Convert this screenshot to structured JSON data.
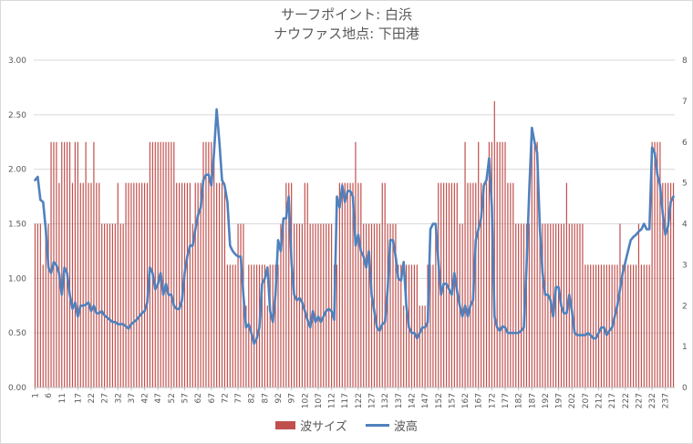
{
  "chart_data": {
    "type": "bar+line",
    "title": [
      "サーフポイント: 白浜",
      "ナウファス地点: 下田港"
    ],
    "x_tick_labels": [
      "1",
      "6",
      "11",
      "17",
      "22",
      "27",
      "32",
      "37",
      "42",
      "47",
      "52",
      "57",
      "62",
      "67",
      "72",
      "77",
      "82",
      "87",
      "92",
      "97",
      "102",
      "107",
      "112",
      "117",
      "122",
      "127",
      "132",
      "137",
      "142",
      "147",
      "152",
      "157",
      "162",
      "167",
      "172",
      "177",
      "182",
      "187",
      "192",
      "197",
      "202",
      "207",
      "212",
      "217",
      "222",
      "227",
      "232",
      "237"
    ],
    "x_range": [
      1,
      240
    ],
    "y_left": {
      "range": [
        0,
        3
      ],
      "ticks": [
        "0.00",
        "0.50",
        "1.00",
        "1.50",
        "2.00",
        "2.50",
        "3.00"
      ]
    },
    "y_right": {
      "range": [
        0,
        8
      ],
      "ticks": [
        "0",
        "1",
        "2",
        "3",
        "4",
        "5",
        "6",
        "7",
        "8"
      ]
    },
    "grid": "horizontal",
    "legend_position": "bottom",
    "series": [
      {
        "name": "波サイズ",
        "type": "bar",
        "axis": "right",
        "color": "#c0504d",
        "step_points": [
          [
            1,
            4
          ],
          [
            4,
            3
          ],
          [
            5,
            4
          ],
          [
            7,
            6
          ],
          [
            10,
            5
          ],
          [
            11,
            6
          ],
          [
            15,
            5
          ],
          [
            16,
            6
          ],
          [
            18,
            5
          ],
          [
            20,
            6
          ],
          [
            21,
            5
          ],
          [
            23,
            6
          ],
          [
            24,
            5
          ],
          [
            26,
            4
          ],
          [
            32,
            5
          ],
          [
            33,
            4
          ],
          [
            35,
            5
          ],
          [
            44,
            6
          ],
          [
            48,
            6
          ],
          [
            54,
            5
          ],
          [
            60,
            4
          ],
          [
            61,
            5
          ],
          [
            64,
            6
          ],
          [
            69,
            5
          ],
          [
            73,
            3
          ],
          [
            74,
            3
          ],
          [
            77,
            4
          ],
          [
            80,
            2
          ],
          [
            81,
            3
          ],
          [
            88,
            2
          ],
          [
            89,
            3
          ],
          [
            93,
            4
          ],
          [
            95,
            5
          ],
          [
            98,
            4
          ],
          [
            102,
            5
          ],
          [
            104,
            4
          ],
          [
            108,
            4
          ],
          [
            113,
            3
          ],
          [
            115,
            5
          ],
          [
            118,
            5
          ],
          [
            121,
            6
          ],
          [
            122,
            5
          ],
          [
            124,
            4
          ],
          [
            131,
            5
          ],
          [
            133,
            4
          ],
          [
            137,
            3
          ],
          [
            139,
            2
          ],
          [
            140,
            3
          ],
          [
            145,
            2
          ],
          [
            148,
            3
          ],
          [
            151,
            4
          ],
          [
            152,
            5
          ],
          [
            160,
            4
          ],
          [
            162,
            6
          ],
          [
            163,
            5
          ],
          [
            167,
            6
          ],
          [
            168,
            5
          ],
          [
            171,
            6
          ],
          [
            173,
            7
          ],
          [
            174,
            6
          ],
          [
            178,
            5
          ],
          [
            181,
            4
          ],
          [
            184,
            4
          ],
          [
            187,
            6
          ],
          [
            190,
            4
          ],
          [
            200,
            5
          ],
          [
            201,
            4
          ],
          [
            207,
            3
          ],
          [
            213,
            3
          ],
          [
            220,
            4
          ],
          [
            221,
            3
          ],
          [
            227,
            4
          ],
          [
            228,
            3
          ],
          [
            232,
            6
          ],
          [
            236,
            5
          ],
          [
            240,
            5
          ]
        ]
      },
      {
        "name": "波高",
        "type": "line",
        "axis": "left",
        "color": "#4f81bd",
        "points": [
          [
            1,
            1.9
          ],
          [
            2,
            1.93
          ],
          [
            3,
            1.72
          ],
          [
            4,
            1.7
          ],
          [
            5,
            1.45
          ],
          [
            6,
            1.1
          ],
          [
            7,
            1.05
          ],
          [
            8,
            1.15
          ],
          [
            9,
            1.12
          ],
          [
            10,
            1.05
          ],
          [
            11,
            0.85
          ],
          [
            12,
            1.1
          ],
          [
            13,
            1.05
          ],
          [
            14,
            0.85
          ],
          [
            15,
            0.72
          ],
          [
            16,
            0.78
          ],
          [
            17,
            0.65
          ],
          [
            18,
            0.75
          ],
          [
            19,
            0.75
          ],
          [
            20,
            0.76
          ],
          [
            21,
            0.78
          ],
          [
            22,
            0.7
          ],
          [
            23,
            0.75
          ],
          [
            24,
            0.68
          ],
          [
            25,
            0.68
          ],
          [
            26,
            0.7
          ],
          [
            27,
            0.66
          ],
          [
            28,
            0.64
          ],
          [
            29,
            0.62
          ],
          [
            30,
            0.6
          ],
          [
            31,
            0.6
          ],
          [
            32,
            0.58
          ],
          [
            33,
            0.58
          ],
          [
            34,
            0.58
          ],
          [
            35,
            0.56
          ],
          [
            36,
            0.54
          ],
          [
            37,
            0.58
          ],
          [
            38,
            0.6
          ],
          [
            39,
            0.62
          ],
          [
            40,
            0.65
          ],
          [
            41,
            0.68
          ],
          [
            42,
            0.7
          ],
          [
            43,
            0.78
          ],
          [
            44,
            1.1
          ],
          [
            45,
            1.05
          ],
          [
            46,
            0.9
          ],
          [
            47,
            0.95
          ],
          [
            48,
            1.05
          ],
          [
            49,
            0.85
          ],
          [
            50,
            0.95
          ],
          [
            51,
            0.85
          ],
          [
            52,
            0.85
          ],
          [
            53,
            0.75
          ],
          [
            54,
            0.72
          ],
          [
            55,
            0.72
          ],
          [
            56,
            0.8
          ],
          [
            57,
            1.05
          ],
          [
            58,
            1.2
          ],
          [
            59,
            1.3
          ],
          [
            60,
            1.3
          ],
          [
            61,
            1.45
          ],
          [
            62,
            1.58
          ],
          [
            63,
            1.65
          ],
          [
            64,
            1.9
          ],
          [
            65,
            1.95
          ],
          [
            66,
            1.95
          ],
          [
            67,
            1.85
          ],
          [
            68,
            2.15
          ],
          [
            69,
            2.55
          ],
          [
            70,
            2.25
          ],
          [
            71,
            1.9
          ],
          [
            72,
            1.85
          ],
          [
            73,
            1.7
          ],
          [
            74,
            1.3
          ],
          [
            75,
            1.25
          ],
          [
            76,
            1.22
          ],
          [
            77,
            1.2
          ],
          [
            78,
            1.2
          ],
          [
            79,
            0.85
          ],
          [
            80,
            0.55
          ],
          [
            81,
            0.58
          ],
          [
            82,
            0.5
          ],
          [
            83,
            0.4
          ],
          [
            84,
            0.45
          ],
          [
            85,
            0.55
          ],
          [
            86,
            0.95
          ],
          [
            87,
            1.0
          ],
          [
            88,
            1.1
          ],
          [
            89,
            0.7
          ],
          [
            90,
            0.6
          ],
          [
            91,
            0.85
          ],
          [
            92,
            1.35
          ],
          [
            93,
            1.25
          ],
          [
            94,
            1.55
          ],
          [
            95,
            1.55
          ],
          [
            96,
            1.75
          ],
          [
            97,
            1.15
          ],
          [
            98,
            0.85
          ],
          [
            99,
            0.8
          ],
          [
            100,
            0.82
          ],
          [
            101,
            0.78
          ],
          [
            102,
            0.7
          ],
          [
            103,
            0.62
          ],
          [
            104,
            0.55
          ],
          [
            105,
            0.7
          ],
          [
            106,
            0.6
          ],
          [
            107,
            0.65
          ],
          [
            108,
            0.6
          ],
          [
            109,
            0.65
          ],
          [
            110,
            0.7
          ],
          [
            111,
            0.72
          ],
          [
            112,
            0.7
          ],
          [
            113,
            0.62
          ],
          [
            114,
            1.75
          ],
          [
            115,
            1.65
          ],
          [
            116,
            1.85
          ],
          [
            117,
            1.7
          ],
          [
            118,
            1.8
          ],
          [
            119,
            1.8
          ],
          [
            120,
            1.75
          ],
          [
            121,
            1.3
          ],
          [
            122,
            1.4
          ],
          [
            123,
            1.25
          ],
          [
            124,
            1.2
          ],
          [
            125,
            1.1
          ],
          [
            126,
            1.25
          ],
          [
            127,
            0.85
          ],
          [
            128,
            0.7
          ],
          [
            129,
            0.55
          ],
          [
            130,
            0.52
          ],
          [
            131,
            0.58
          ],
          [
            132,
            0.6
          ],
          [
            133,
            0.9
          ],
          [
            134,
            1.35
          ],
          [
            135,
            1.35
          ],
          [
            136,
            1.2
          ],
          [
            137,
            1.0
          ],
          [
            138,
            0.98
          ],
          [
            139,
            1.15
          ],
          [
            140,
            0.75
          ],
          [
            141,
            0.55
          ],
          [
            142,
            0.5
          ],
          [
            143,
            0.5
          ],
          [
            144,
            0.45
          ],
          [
            145,
            0.5
          ],
          [
            146,
            0.55
          ],
          [
            147,
            0.55
          ],
          [
            148,
            0.6
          ],
          [
            149,
            1.45
          ],
          [
            150,
            1.5
          ],
          [
            151,
            1.5
          ],
          [
            152,
            1.15
          ],
          [
            153,
            0.85
          ],
          [
            154,
            0.95
          ],
          [
            155,
            0.95
          ],
          [
            156,
            0.9
          ],
          [
            157,
            0.85
          ],
          [
            158,
            1.05
          ],
          [
            159,
            0.88
          ],
          [
            160,
            0.75
          ],
          [
            161,
            0.65
          ],
          [
            162,
            0.75
          ],
          [
            163,
            0.65
          ],
          [
            164,
            0.75
          ],
          [
            165,
            0.8
          ],
          [
            166,
            1.35
          ],
          [
            167,
            1.45
          ],
          [
            168,
            1.55
          ],
          [
            169,
            1.85
          ],
          [
            170,
            1.9
          ],
          [
            171,
            2.1
          ],
          [
            172,
            1.65
          ],
          [
            173,
            0.65
          ],
          [
            174,
            0.55
          ],
          [
            175,
            0.52
          ],
          [
            176,
            0.56
          ],
          [
            177,
            0.55
          ],
          [
            178,
            0.5
          ],
          [
            179,
            0.5
          ],
          [
            180,
            0.5
          ],
          [
            181,
            0.5
          ],
          [
            182,
            0.5
          ],
          [
            183,
            0.52
          ],
          [
            184,
            0.55
          ],
          [
            185,
            1.1
          ],
          [
            186,
            1.8
          ],
          [
            187,
            2.38
          ],
          [
            188,
            2.25
          ],
          [
            189,
            2.15
          ],
          [
            190,
            1.45
          ],
          [
            191,
            1.05
          ],
          [
            192,
            0.85
          ],
          [
            193,
            0.85
          ],
          [
            194,
            0.8
          ],
          [
            195,
            0.65
          ],
          [
            196,
            0.92
          ],
          [
            197,
            0.92
          ],
          [
            198,
            0.75
          ],
          [
            199,
            0.68
          ],
          [
            200,
            0.68
          ],
          [
            201,
            0.85
          ],
          [
            202,
            0.7
          ],
          [
            203,
            0.5
          ],
          [
            204,
            0.48
          ],
          [
            205,
            0.48
          ],
          [
            206,
            0.48
          ],
          [
            207,
            0.48
          ],
          [
            208,
            0.5
          ],
          [
            209,
            0.48
          ],
          [
            210,
            0.45
          ],
          [
            211,
            0.45
          ],
          [
            212,
            0.5
          ],
          [
            213,
            0.55
          ],
          [
            214,
            0.55
          ],
          [
            215,
            0.48
          ],
          [
            216,
            0.52
          ],
          [
            217,
            0.55
          ],
          [
            218,
            0.65
          ],
          [
            219,
            0.75
          ],
          [
            220,
            0.9
          ],
          [
            221,
            1.05
          ],
          [
            222,
            1.15
          ],
          [
            223,
            1.25
          ],
          [
            224,
            1.35
          ],
          [
            225,
            1.38
          ],
          [
            226,
            1.4
          ],
          [
            227,
            1.43
          ],
          [
            228,
            1.45
          ],
          [
            229,
            1.5
          ],
          [
            230,
            1.45
          ],
          [
            231,
            1.45
          ],
          [
            232,
            2.2
          ],
          [
            233,
            2.15
          ],
          [
            234,
            1.95
          ],
          [
            235,
            1.85
          ],
          [
            236,
            1.6
          ],
          [
            237,
            1.4
          ],
          [
            238,
            1.48
          ],
          [
            239,
            1.7
          ],
          [
            240,
            1.75
          ]
        ]
      }
    ]
  }
}
